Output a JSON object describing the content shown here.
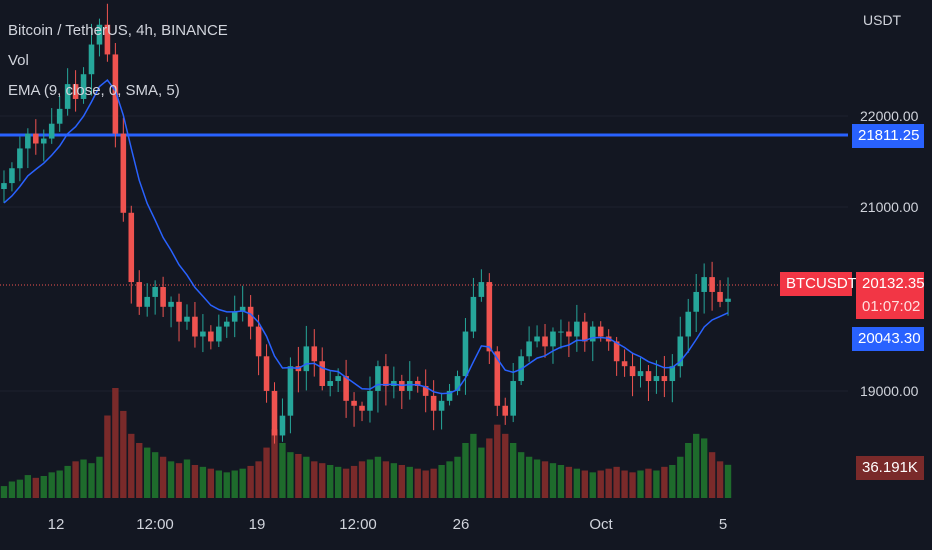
{
  "legend": {
    "symbol": "Bitcoin / TetherUS, 4h, BINANCE",
    "volume": "Vol",
    "ema": "EMA (9, close, 0, SMA, 5)"
  },
  "price_axis": {
    "currency": "USDT",
    "ticks": [
      "22000.00",
      "21000.00",
      "19000.00"
    ]
  },
  "time_axis": {
    "ticks": [
      "12",
      "12:00",
      "19",
      "12:00",
      "26",
      "Oct",
      "5"
    ]
  },
  "tags": {
    "hline_value": "21811.25",
    "symbol": "BTCUSDT",
    "last_price": "20132.35",
    "countdown": "01:07:02",
    "ema_value": "20043.30",
    "volume_value": "36.191K"
  },
  "colors": {
    "background": "#131722",
    "up": "#26a69a",
    "down": "#ef5350",
    "ema": "#2962ff",
    "hline": "#2962ff",
    "vol_up": "#1e6b2c",
    "vol_down": "#7a2a2a"
  },
  "chart_data": {
    "type": "candlestick",
    "timeframe": "4h",
    "y_axis": {
      "ylim": [
        18300,
        23150
      ]
    },
    "horizontal_line": 21811.25,
    "last_price": 20132.35,
    "ema_last": 20043.3,
    "closes": [
      21300,
      21450,
      21650,
      21800,
      21700,
      21750,
      21900,
      22050,
      22300,
      22150,
      22400,
      22700,
      22900,
      22600,
      21800,
      21000,
      20300,
      20050,
      20150,
      20250,
      20050,
      20100,
      19900,
      19950,
      19750,
      19800,
      19700,
      19850,
      19900,
      20000,
      20050,
      19850,
      19550,
      19200,
      18750,
      18950,
      19450,
      19400,
      19650,
      19500,
      19250,
      19300,
      19350,
      19100,
      19050,
      19000,
      19200,
      19450,
      19250,
      19300,
      19200,
      19300,
      19250,
      19150,
      19000,
      19100,
      19200,
      19350,
      19800,
      20150,
      20300,
      19600,
      19050,
      18950,
      19300,
      19550,
      19700,
      19750,
      19650,
      19800,
      19800,
      19750,
      19900,
      19700,
      19850,
      19750,
      19700,
      19500,
      19450,
      19350,
      19400,
      19300,
      19350,
      19300,
      19450,
      19750,
      20000,
      20200,
      20350,
      20200,
      20100,
      20132
    ],
    "volumes": [
      13,
      18,
      20,
      25,
      22,
      24,
      28,
      30,
      35,
      40,
      42,
      38,
      45,
      90,
      120,
      95,
      70,
      60,
      55,
      50,
      45,
      40,
      38,
      42,
      36,
      34,
      32,
      30,
      28,
      30,
      32,
      35,
      40,
      55,
      75,
      60,
      50,
      48,
      45,
      40,
      38,
      36,
      34,
      32,
      35,
      40,
      42,
      45,
      40,
      38,
      36,
      34,
      32,
      30,
      32,
      36,
      40,
      45,
      60,
      70,
      55,
      65,
      80,
      70,
      60,
      50,
      45,
      42,
      40,
      38,
      36,
      34,
      32,
      30,
      28,
      30,
      32,
      34,
      30,
      28,
      30,
      32,
      30,
      34,
      36,
      45,
      60,
      70,
      65,
      50,
      40,
      36.191
    ]
  }
}
